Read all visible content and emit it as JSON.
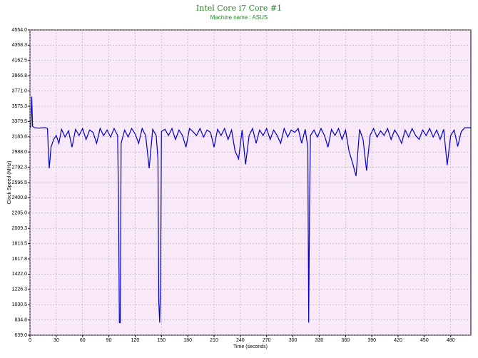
{
  "chart_data": {
    "type": "line",
    "title": "Intel Core i7 Core #1",
    "subtitle": "Machine name : ASUS",
    "x_label": "Time (seconds)",
    "y_label": "Clock Speed (MHz)",
    "color": "#0000cc",
    "background": "#f8e8f8",
    "grid": true,
    "xlim": [
      0,
      503
    ],
    "ylim": [
      639,
      4554
    ],
    "xticks": [
      0,
      30,
      60,
      90,
      120,
      150,
      180,
      210,
      240,
      270,
      300,
      330,
      360,
      390,
      420,
      450,
      480
    ],
    "yticks": [
      {
        "value": 639,
        "label": "639.0"
      },
      834.8,
      1030.5,
      1226.3,
      {
        "value": 1422,
        "label": "1422.0"
      },
      1617.8,
      1813.5,
      2009.3,
      {
        "value": 2205,
        "label": "2205.0"
      },
      2400.8,
      2596.5,
      2792.3,
      {
        "value": 2988,
        "label": "2988.0"
      },
      3183.8,
      3379.5,
      3575.3,
      {
        "value": 3771,
        "label": "3771.0"
      },
      3966.8,
      4162.5,
      4358.3,
      {
        "value": 4554,
        "label": "4554.0"
      }
    ],
    "x": [
      0,
      1,
      2,
      3,
      5,
      10,
      15,
      18,
      20,
      21,
      22,
      24,
      27,
      30,
      33,
      36,
      40,
      44,
      48,
      52,
      56,
      60,
      64,
      68,
      72,
      76,
      80,
      84,
      88,
      92,
      96,
      100,
      101,
      102,
      103,
      104,
      108,
      112,
      116,
      120,
      124,
      128,
      132,
      136,
      140,
      144,
      146,
      147,
      148,
      149,
      150,
      154,
      158,
      162,
      166,
      170,
      174,
      178,
      182,
      186,
      190,
      194,
      198,
      202,
      206,
      210,
      214,
      218,
      222,
      226,
      230,
      234,
      238,
      242,
      246,
      250,
      254,
      258,
      262,
      266,
      270,
      274,
      278,
      282,
      286,
      290,
      294,
      298,
      302,
      306,
      310,
      314,
      317,
      318,
      319,
      320,
      324,
      328,
      332,
      336,
      340,
      344,
      348,
      352,
      356,
      360,
      364,
      368,
      372,
      376,
      380,
      384,
      388,
      392,
      396,
      400,
      404,
      408,
      412,
      416,
      420,
      424,
      428,
      432,
      436,
      440,
      444,
      448,
      452,
      456,
      460,
      464,
      468,
      472,
      476,
      480,
      484,
      488,
      492,
      496,
      500,
      503
    ],
    "values": [
      3300,
      3320,
      3700,
      3320,
      3300,
      3295,
      3300,
      3300,
      3290,
      3000,
      2780,
      3050,
      3150,
      3200,
      3100,
      3280,
      3180,
      3260,
      3050,
      3280,
      3200,
      3290,
      3150,
      3270,
      3240,
      3100,
      3290,
      3200,
      3270,
      3180,
      3290,
      3200,
      2400,
      800,
      800,
      3100,
      3270,
      3180,
      3290,
      3220,
      3100,
      3290,
      3200,
      2780,
      3280,
      3200,
      2900,
      1050,
      800,
      1300,
      3250,
      3280,
      3200,
      3290,
      3150,
      3270,
      3200,
      3050,
      3290,
      3250,
      3200,
      3290,
      3180,
      3270,
      3240,
      3050,
      3280,
      3200,
      3290,
      3150,
      3270,
      3000,
      2900,
      3270,
      2830,
      3200,
      3290,
      3100,
      3270,
      3200,
      3290,
      3150,
      3270,
      3200,
      3100,
      3290,
      3180,
      3270,
      3240,
      3290,
      3100,
      3280,
      3050,
      800,
      2350,
      3200,
      3270,
      3180,
      3290,
      3200,
      3050,
      3280,
      3200,
      3290,
      3150,
      3270,
      3000,
      2850,
      2680,
      3280,
      3150,
      2750,
      3200,
      3290,
      3180,
      3260,
      3200,
      3290,
      3150,
      3270,
      3200,
      3100,
      3270,
      3180,
      3290,
      3200,
      3150,
      3270,
      3200,
      3290,
      3180,
      3270,
      3150,
      3280,
      2820,
      3200,
      3270,
      3060,
      3250,
      3300,
      3300,
      3300
    ]
  }
}
